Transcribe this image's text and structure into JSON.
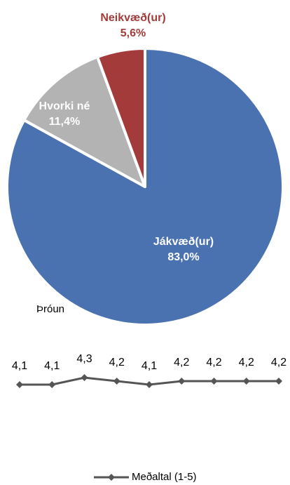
{
  "chart_data": [
    {
      "type": "pie",
      "categories": [
        "Jákvæð(ur)",
        "Hvorki né",
        "Neikvæð(ur)"
      ],
      "values": [
        83.0,
        11.4,
        5.6
      ],
      "value_labels": [
        "83,0%",
        "11,4%",
        "5,6%"
      ],
      "colors": [
        "#4a72b0",
        "#b3b3b3",
        "#a33b3b"
      ]
    },
    {
      "type": "line",
      "title": "Þróun",
      "series": [
        {
          "name": "Meðaltal (1-5)",
          "color": "#555555",
          "values": [
            4.1,
            4.1,
            4.3,
            4.2,
            4.1,
            4.2,
            4.2,
            4.2,
            4.2
          ],
          "value_labels": [
            "4,1",
            "4,1",
            "4,3",
            "4,2",
            "4,1",
            "4,2",
            "4,2",
            "4,2",
            "4,2"
          ]
        }
      ]
    }
  ]
}
